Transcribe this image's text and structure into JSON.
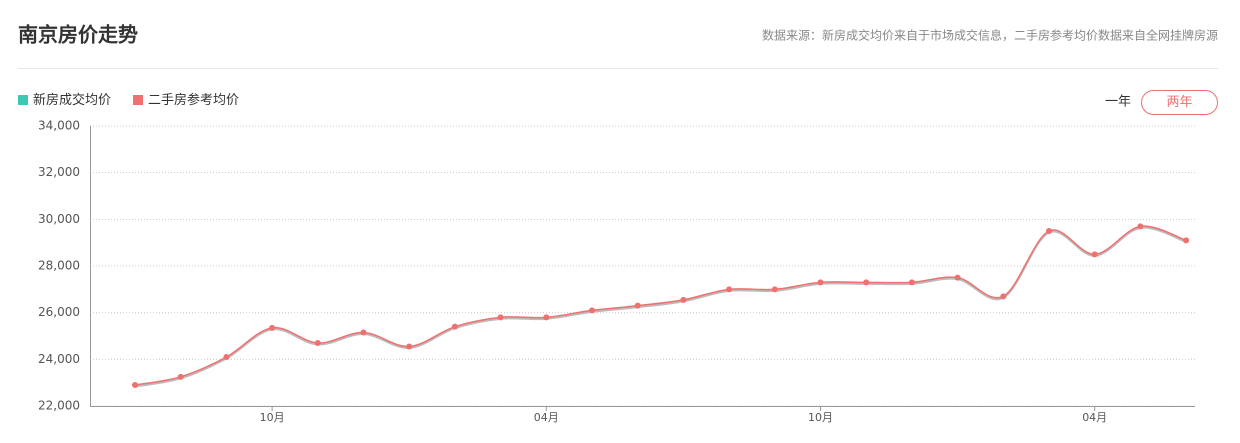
{
  "header": {
    "title": "南京房价走势",
    "source": "数据来源：新房成交均价来自于市场成交信息，二手房参考均价数据来自全网挂牌房源"
  },
  "controls": {
    "one_year": "一年",
    "two_years": "两年"
  },
  "chart_data": {
    "type": "line",
    "categories": [
      null,
      null,
      null,
      "10月",
      null,
      null,
      null,
      null,
      null,
      "04月",
      null,
      null,
      null,
      null,
      null,
      "10月",
      null,
      null,
      null,
      null,
      null,
      "04月",
      null,
      null
    ],
    "series": [
      {
        "name": "新房成交均价",
        "color": "#3cc8b4",
        "values": [
          null,
          null,
          null,
          null,
          null,
          null,
          null,
          null,
          null,
          null,
          null,
          null,
          null,
          null,
          null,
          null,
          null,
          null,
          null,
          null,
          null,
          null,
          null,
          null
        ]
      },
      {
        "name": "二手房参考均价",
        "color": "#f07070",
        "values": [
          22900,
          23250,
          24100,
          25350,
          24700,
          25150,
          24550,
          25400,
          25800,
          25800,
          26100,
          26300,
          26550,
          27000,
          27000,
          27300,
          27300,
          27300,
          27500,
          26700,
          29500,
          28500,
          29700,
          29100
        ]
      }
    ],
    "ylim": [
      22000,
      34000
    ],
    "yticks": [
      {
        "value": 22000,
        "label": "22,000"
      },
      {
        "value": 24000,
        "label": "24,000"
      },
      {
        "value": 26000,
        "label": "26,000"
      },
      {
        "value": 28000,
        "label": "28,000"
      },
      {
        "value": 30000,
        "label": "30,000"
      },
      {
        "value": 32000,
        "label": "32,000"
      },
      {
        "value": 34000,
        "label": "34,000"
      }
    ],
    "grid": true,
    "smooth": true
  }
}
